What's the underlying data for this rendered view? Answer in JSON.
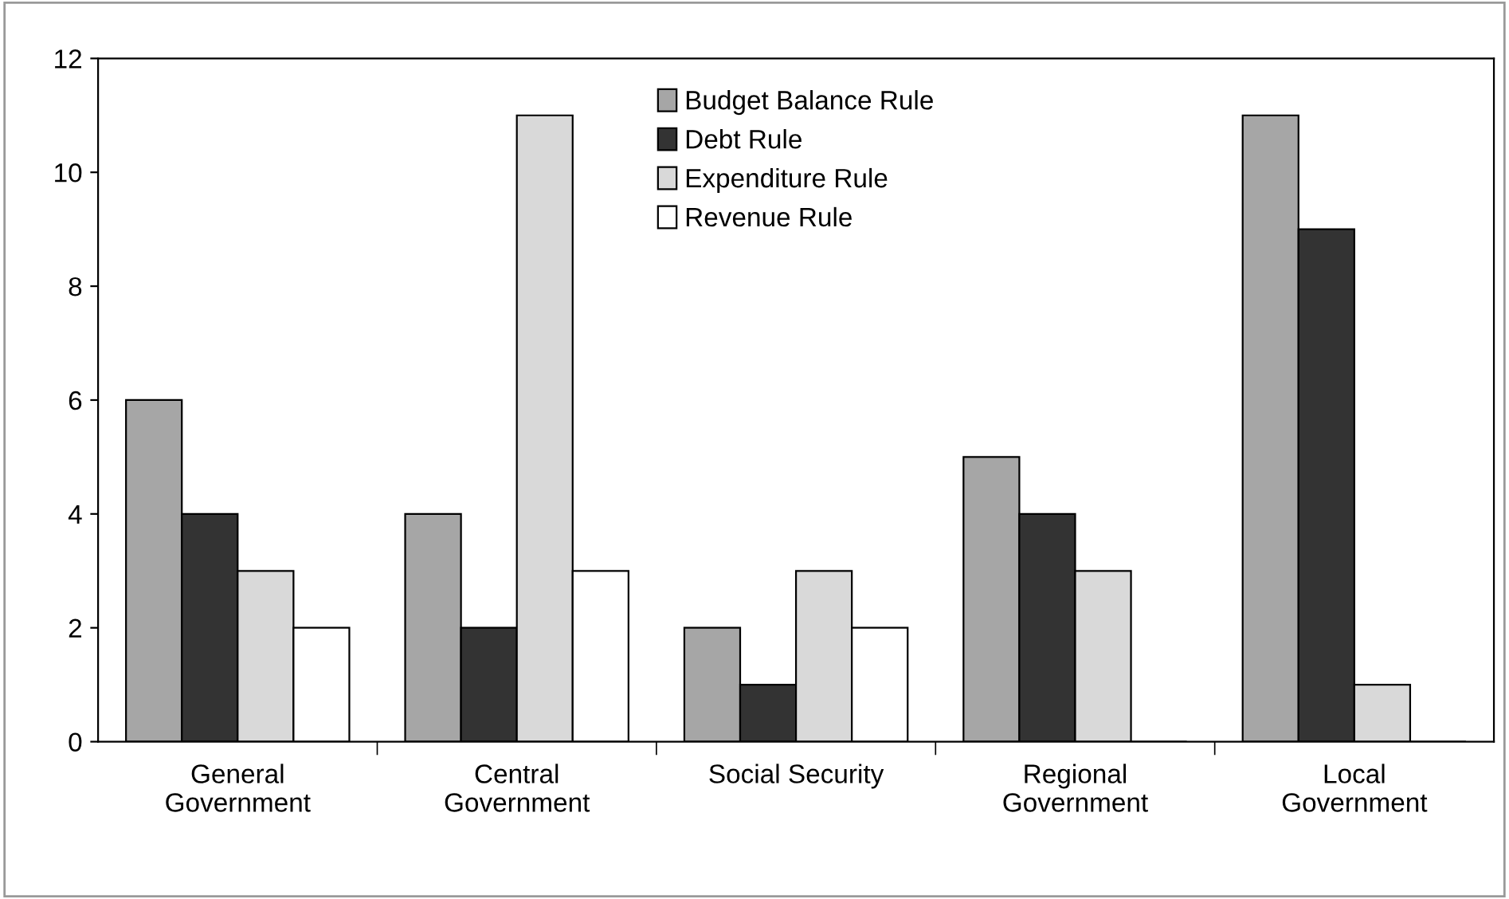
{
  "chart_data": {
    "type": "bar",
    "categories": [
      "General\nGovernment",
      "Central\nGovernment",
      "Social Security",
      "Regional\nGovernment",
      "Local\nGovernment"
    ],
    "series": [
      {
        "name": "Budget Balance Rule",
        "color": "#a6a6a6",
        "values": [
          6,
          4,
          2,
          5,
          11
        ]
      },
      {
        "name": "Debt Rule",
        "color": "#333333",
        "values": [
          4,
          2,
          1,
          4,
          9
        ]
      },
      {
        "name": "Expenditure Rule",
        "color": "#d9d9d9",
        "values": [
          3,
          11,
          3,
          3,
          1
        ]
      },
      {
        "name": "Revenue Rule",
        "color": "#ffffff",
        "values": [
          2,
          3,
          2,
          0,
          0
        ]
      }
    ],
    "ylim": [
      0,
      12
    ],
    "yticks": [
      0,
      2,
      4,
      6,
      8,
      10,
      12
    ],
    "grid": false,
    "legend": "top"
  }
}
